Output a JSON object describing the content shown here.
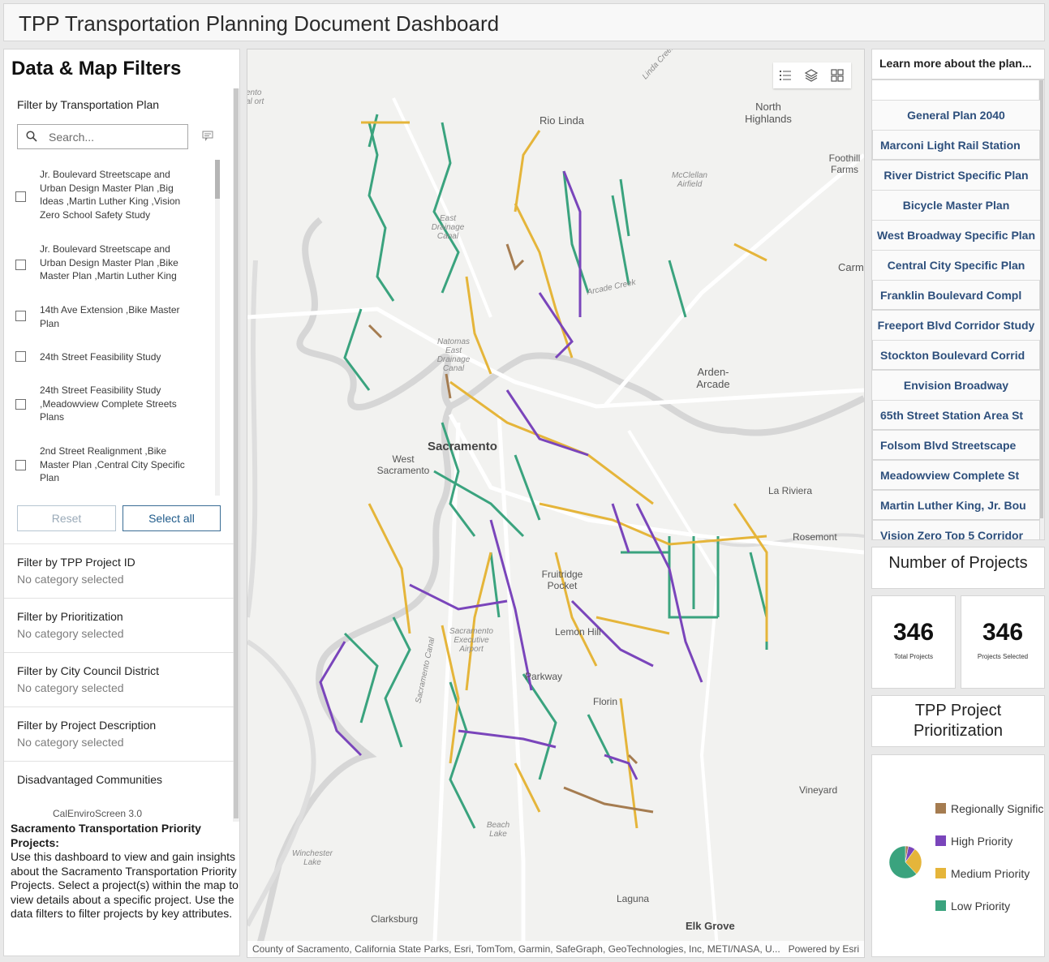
{
  "header": {
    "title": "TPP Transportation Planning Document Dashboard"
  },
  "filters": {
    "panel_title": "Data & Map Filters",
    "plan": {
      "label": "Filter by Transportation Plan",
      "search_placeholder": "Search...",
      "items": [
        "Jr. Boulevard Streetscape and Urban Design Master Plan ,Big Ideas ,Martin Luther King ,Vision Zero School Safety Study",
        "Jr. Boulevard Streetscape and Urban Design Master Plan ,Bike Master Plan ,Martin Luther King",
        "14th Ave Extension ,Bike Master Plan",
        "24th Street Feasibility Study",
        "24th Street Feasibility Study ,Meadowview Complete Streets Plans",
        "2nd Street Realignment ,Bike Master Plan ,Central City Specific Plan"
      ],
      "reset_label": "Reset",
      "select_all_label": "Select all"
    },
    "sections": [
      {
        "title": "Filter by TPP Project ID",
        "value": "No category selected"
      },
      {
        "title": "Filter by Prioritization",
        "value": "No category selected"
      },
      {
        "title": "Filter by City Council District",
        "value": "No category selected"
      },
      {
        "title": "Filter by Project Description",
        "value": "No category selected"
      }
    ],
    "disadvantaged": {
      "title": "Disadvantaged Communities",
      "sub": "CalEnviroScreen 3.0"
    }
  },
  "about": {
    "title": "Sacramento Transportation Priority Projects:",
    "body": "Use this dashboard to view and gain insights about the Sacramento Transportation Priority Projects. Select a project(s) within the map to view details about a specific project. Use the data filters to filter projects by key attributes."
  },
  "map": {
    "labels": {
      "rio_linda": "Rio Linda",
      "north_highlands": "North Highlands",
      "foothill_farms": "Foothill Farms",
      "mcclellan": "McClellan Airfield",
      "carm": "Carm",
      "sacramento": "Sacramento",
      "west_sacramento": "West Sacramento",
      "arden_arcade": "Arden-Arcade",
      "la_riviera": "La Riviera",
      "rosemont": "Rosemont",
      "fruitridge": "Fruitridge Pocket",
      "lemon_hill": "Lemon Hill",
      "parkway": "Parkway",
      "florin": "Florin",
      "vineyard": "Vineyard",
      "laguna": "Laguna",
      "clarksburg": "Clarksburg",
      "elk_grove": "Elk Grove",
      "winchester": "Winchester Lake",
      "beach_lake": "Beach Lake",
      "airport": "Sacramento Executive Airport",
      "east_drainage": "East Drainage Canal",
      "natomas": "Natomas East Drainage Canal",
      "arcade_creek": "Arcade Creek",
      "sac_canal": "Sacramento Canal",
      "metro_airport": "ento al ort",
      "linda_creek": "Linda Creek"
    },
    "attribution": "County of Sacramento, California State Parks, Esri, TomTom, Garmin, SafeGraph, GeoTechnologies, Inc, METI/NASA, U...",
    "powered_by": "Powered by Esri",
    "legend_colors": {
      "regional": "#a57c50",
      "high": "#7a45bb",
      "medium": "#e5b53a",
      "low": "#3aa37e"
    }
  },
  "learn_more": {
    "title": "Learn more about the plan...",
    "links": [
      "General Plan 2040",
      "Marconi Light Rail Station",
      "River District Specific Plan",
      "Bicycle Master Plan",
      "West Broadway Specific Plan",
      "Central City Specific Plan",
      "Franklin Boulevard Compl",
      "Freeport Blvd Corridor Study",
      "Stockton Boulevard Corrid",
      "Envision Broadway",
      "65th Street Station Area St",
      "Folsom Blvd Streetscape",
      "Meadowview Complete St",
      "Martin Luther King, Jr. Bou",
      "Vision Zero Top 5 Corridor"
    ]
  },
  "stats": {
    "title": "Number of Projects",
    "total": {
      "value": "346",
      "caption": "Total Projects"
    },
    "selected": {
      "value": "346",
      "caption": "Projects Selected"
    }
  },
  "prioritization": {
    "title": "TPP Project Prioritization",
    "slices": [
      {
        "label": "Regionally Significant",
        "display": "Regionally Signific",
        "color": "#a57c50",
        "value": 0.03
      },
      {
        "label": "High Priority",
        "display": "High Priority",
        "color": "#7a45bb",
        "value": 0.07
      },
      {
        "label": "Medium Priority",
        "display": "Medium Priority",
        "color": "#e5b53a",
        "value": 0.28
      },
      {
        "label": "Low Priority",
        "display": "Low Priority",
        "color": "#3aa37e",
        "value": 0.62
      }
    ]
  }
}
